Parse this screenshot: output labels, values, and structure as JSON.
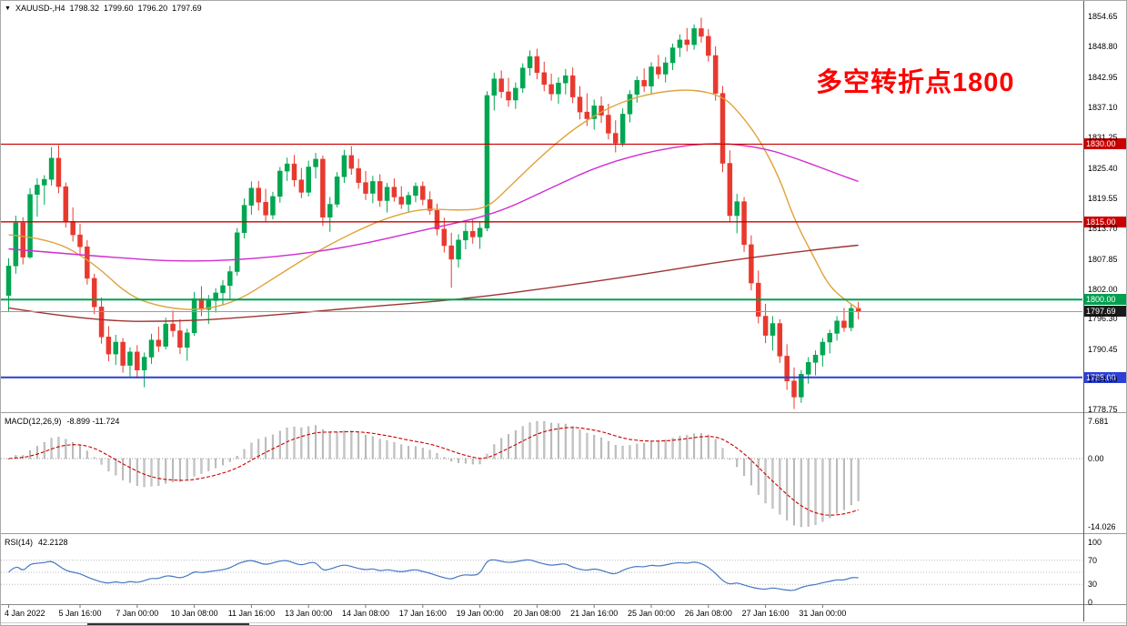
{
  "readout": {
    "symbol": "XAUUSD-,H4",
    "open": "1798.32",
    "high": "1799.60",
    "low": "1796.20",
    "close": "1797.69"
  },
  "annotation": {
    "text": "多空转折点1800",
    "color": "#ff0000"
  },
  "price_axis": {
    "ticks": [
      "1854.65",
      "1848.80",
      "1842.95",
      "1837.10",
      "1831.25",
      "1825.40",
      "1819.55",
      "1813.70",
      "1807.85",
      "1802.00",
      "1796.30",
      "1790.45",
      "1784.60",
      "1778.75"
    ]
  },
  "macd_panel": {
    "title": "MACD(12,26,9)",
    "values": "-8.899 -11.724",
    "axis_labels": [
      "7.681",
      "0.00",
      "-14.026"
    ],
    "axis_values": [
      7.681,
      0,
      -14.026
    ]
  },
  "rsi_panel": {
    "title": "RSI(14)",
    "value": "42.2128",
    "axis_labels": [
      "100",
      "70",
      "30",
      "0"
    ],
    "axis_values": [
      100,
      70,
      30,
      0
    ],
    "levels": [
      70,
      50,
      30
    ]
  },
  "time_axis": {
    "labels": [
      {
        "index": 0,
        "text": "4 Jan 2022"
      },
      {
        "index": 10,
        "text": "5 Jan 16:00"
      },
      {
        "index": 18,
        "text": "7 Jan 00:00"
      },
      {
        "index": 26,
        "text": "10 Jan 08:00"
      },
      {
        "index": 34,
        "text": "11 Jan 16:00"
      },
      {
        "index": 42,
        "text": "13 Jan 00:00"
      },
      {
        "index": 50,
        "text": "14 Jan 08:00"
      },
      {
        "index": 58,
        "text": "17 Jan 16:00"
      },
      {
        "index": 66,
        "text": "19 Jan 00:00"
      },
      {
        "index": 74,
        "text": "20 Jan 08:00"
      },
      {
        "index": 82,
        "text": "21 Jan 16:00"
      },
      {
        "index": 90,
        "text": "25 Jan 00:00"
      },
      {
        "index": 98,
        "text": "26 Jan 08:00"
      },
      {
        "index": 106,
        "text": "27 Jan 16:00"
      },
      {
        "index": 114,
        "text": "31 Jan 00:00"
      }
    ]
  },
  "chart_data": {
    "type": "candlestick",
    "symbol": "XAUUSD",
    "timeframe": "H4",
    "title": "XAUUSD-,H4",
    "y_axis": {
      "min": 1778.75,
      "max": 1854.65
    },
    "colors": {
      "up": "#00a651",
      "down": "#e8392e",
      "rsi": "#4577c2"
    },
    "current_price": {
      "value": 1797.69,
      "label": "1797.69",
      "line_color": "#9b9b9b",
      "tag_bg": "#1a1a1a"
    },
    "hlines": [
      {
        "price": 1830.0,
        "label": "1830.00",
        "color": "#c80000",
        "width": 1.2
      },
      {
        "price": 1815.0,
        "label": "1815.00",
        "color": "#c80000",
        "width": 1.4
      },
      {
        "price": 1800.0,
        "label": "1800.00",
        "color": "#00a050",
        "width": 2
      },
      {
        "price": 1785.0,
        "label": "1785.00",
        "color": "#2c3fd6",
        "width": 2
      }
    ],
    "candles": [
      [
        1800.8,
        1808.0,
        1797.6,
        1806.5
      ],
      [
        1806.5,
        1816.2,
        1805.0,
        1814.8
      ],
      [
        1814.8,
        1815.9,
        1806.8,
        1808.2
      ],
      [
        1808.2,
        1821.5,
        1807.9,
        1820.3
      ],
      [
        1820.3,
        1823.4,
        1816.0,
        1822.1
      ],
      [
        1822.1,
        1824.0,
        1818.3,
        1823.2
      ],
      [
        1823.2,
        1829.4,
        1822.0,
        1827.3
      ],
      [
        1827.3,
        1829.8,
        1820.5,
        1821.8
      ],
      [
        1821.8,
        1822.6,
        1813.9,
        1815.1
      ],
      [
        1815.1,
        1817.8,
        1811.2,
        1812.5
      ],
      [
        1812.5,
        1814.6,
        1808.8,
        1810.2
      ],
      [
        1810.2,
        1811.5,
        1802.9,
        1804.1
      ],
      [
        1804.1,
        1805.0,
        1797.2,
        1798.6
      ],
      [
        1798.6,
        1800.4,
        1791.5,
        1792.8
      ],
      [
        1792.8,
        1794.9,
        1788.1,
        1789.5
      ],
      [
        1789.5,
        1793.2,
        1787.4,
        1791.8
      ],
      [
        1791.8,
        1792.6,
        1785.9,
        1787.3
      ],
      [
        1787.3,
        1790.8,
        1785.2,
        1789.9
      ],
      [
        1789.9,
        1791.2,
        1784.8,
        1786.4
      ],
      [
        1786.4,
        1789.8,
        1783.1,
        1788.9
      ],
      [
        1788.9,
        1793.4,
        1787.6,
        1792.2
      ],
      [
        1792.2,
        1794.8,
        1789.9,
        1791.0
      ],
      [
        1791.0,
        1796.5,
        1790.4,
        1795.3
      ],
      [
        1795.3,
        1797.9,
        1792.8,
        1794.0
      ],
      [
        1794.0,
        1796.2,
        1789.5,
        1790.8
      ],
      [
        1790.8,
        1794.4,
        1788.2,
        1793.6
      ],
      [
        1793.6,
        1801.5,
        1793.0,
        1800.2
      ],
      [
        1800.2,
        1802.6,
        1796.8,
        1798.1
      ],
      [
        1798.1,
        1800.9,
        1795.3,
        1799.8
      ],
      [
        1799.8,
        1802.2,
        1797.5,
        1801.3
      ],
      [
        1801.3,
        1803.8,
        1798.9,
        1802.7
      ],
      [
        1802.7,
        1806.5,
        1800.1,
        1805.4
      ],
      [
        1805.4,
        1813.8,
        1804.6,
        1812.9
      ],
      [
        1812.9,
        1819.5,
        1811.8,
        1818.2
      ],
      [
        1818.2,
        1822.8,
        1816.4,
        1821.5
      ],
      [
        1821.5,
        1822.9,
        1817.2,
        1818.8
      ],
      [
        1818.8,
        1821.4,
        1814.9,
        1816.3
      ],
      [
        1816.3,
        1820.8,
        1815.5,
        1819.9
      ],
      [
        1819.9,
        1825.6,
        1818.7,
        1824.8
      ],
      [
        1824.8,
        1827.4,
        1822.9,
        1826.2
      ],
      [
        1826.2,
        1827.9,
        1821.8,
        1823.1
      ],
      [
        1823.1,
        1825.4,
        1819.6,
        1820.7
      ],
      [
        1820.7,
        1826.8,
        1819.9,
        1825.6
      ],
      [
        1825.6,
        1828.3,
        1823.4,
        1827.1
      ],
      [
        1827.1,
        1827.8,
        1814.2,
        1815.9
      ],
      [
        1815.9,
        1819.8,
        1813.1,
        1818.4
      ],
      [
        1818.4,
        1824.6,
        1817.8,
        1823.7
      ],
      [
        1823.7,
        1828.9,
        1822.5,
        1827.8
      ],
      [
        1827.8,
        1829.6,
        1824.1,
        1825.3
      ],
      [
        1825.3,
        1827.2,
        1821.4,
        1822.6
      ],
      [
        1822.6,
        1824.8,
        1819.2,
        1820.5
      ],
      [
        1820.5,
        1823.9,
        1818.6,
        1822.8
      ],
      [
        1822.8,
        1824.2,
        1817.9,
        1819.1
      ],
      [
        1819.1,
        1822.5,
        1816.8,
        1821.7
      ],
      [
        1821.7,
        1823.4,
        1818.9,
        1819.8
      ],
      [
        1819.8,
        1821.9,
        1817.5,
        1818.4
      ],
      [
        1818.4,
        1820.8,
        1816.9,
        1820.1
      ],
      [
        1820.1,
        1822.6,
        1818.8,
        1821.9
      ],
      [
        1821.9,
        1822.8,
        1818.2,
        1819.3
      ],
      [
        1819.3,
        1820.9,
        1816.4,
        1817.2
      ],
      [
        1817.2,
        1818.5,
        1812.4,
        1813.6
      ],
      [
        1813.6,
        1815.8,
        1809.1,
        1810.4
      ],
      [
        1810.4,
        1812.9,
        1802.3,
        1807.8
      ],
      [
        1807.8,
        1812.6,
        1806.2,
        1811.5
      ],
      [
        1811.5,
        1814.8,
        1809.7,
        1813.2
      ],
      [
        1813.2,
        1815.4,
        1810.8,
        1812.1
      ],
      [
        1812.1,
        1814.9,
        1809.8,
        1813.8
      ],
      [
        1813.8,
        1840.2,
        1813.2,
        1839.4
      ],
      [
        1839.4,
        1843.8,
        1836.5,
        1842.6
      ],
      [
        1842.6,
        1844.2,
        1838.9,
        1840.1
      ],
      [
        1840.1,
        1842.8,
        1837.2,
        1838.5
      ],
      [
        1838.5,
        1841.9,
        1836.8,
        1840.8
      ],
      [
        1840.8,
        1845.6,
        1839.9,
        1844.7
      ],
      [
        1844.7,
        1848.1,
        1843.2,
        1846.9
      ],
      [
        1846.9,
        1848.4,
        1842.5,
        1843.8
      ],
      [
        1843.8,
        1845.9,
        1840.2,
        1841.5
      ],
      [
        1841.5,
        1843.6,
        1838.4,
        1839.7
      ],
      [
        1839.7,
        1842.9,
        1837.8,
        1841.8
      ],
      [
        1841.8,
        1844.5,
        1839.6,
        1843.2
      ],
      [
        1843.2,
        1844.8,
        1837.9,
        1839.1
      ],
      [
        1839.1,
        1841.2,
        1834.8,
        1836.2
      ],
      [
        1836.2,
        1839.8,
        1833.5,
        1834.9
      ],
      [
        1834.9,
        1838.6,
        1832.8,
        1837.4
      ],
      [
        1837.4,
        1839.2,
        1834.1,
        1835.6
      ],
      [
        1835.6,
        1837.8,
        1830.9,
        1832.1
      ],
      [
        1832.1,
        1834.6,
        1828.4,
        1830.2
      ],
      [
        1830.2,
        1836.9,
        1829.5,
        1835.8
      ],
      [
        1835.8,
        1840.4,
        1834.2,
        1839.6
      ],
      [
        1839.6,
        1843.1,
        1838.0,
        1842.3
      ],
      [
        1842.3,
        1844.6,
        1840.1,
        1841.2
      ],
      [
        1841.2,
        1845.8,
        1839.8,
        1844.9
      ],
      [
        1844.9,
        1847.2,
        1842.6,
        1843.5
      ],
      [
        1843.5,
        1846.8,
        1841.9,
        1845.7
      ],
      [
        1845.7,
        1849.4,
        1844.3,
        1848.6
      ],
      [
        1848.6,
        1851.2,
        1846.8,
        1850.1
      ],
      [
        1850.1,
        1852.4,
        1847.9,
        1849.2
      ],
      [
        1849.2,
        1853.1,
        1848.2,
        1852.3
      ],
      [
        1852.3,
        1854.4,
        1849.6,
        1850.8
      ],
      [
        1850.8,
        1852.2,
        1845.9,
        1847.1
      ],
      [
        1847.1,
        1848.9,
        1838.4,
        1839.8
      ],
      [
        1839.8,
        1841.2,
        1824.6,
        1826.3
      ],
      [
        1826.3,
        1828.8,
        1814.9,
        1816.2
      ],
      [
        1816.2,
        1820.4,
        1812.8,
        1818.9
      ],
      [
        1818.9,
        1819.8,
        1809.2,
        1810.6
      ],
      [
        1810.6,
        1812.4,
        1801.8,
        1803.2
      ],
      [
        1803.2,
        1805.6,
        1795.4,
        1796.8
      ],
      [
        1796.8,
        1799.2,
        1791.6,
        1793.1
      ],
      [
        1793.1,
        1796.8,
        1790.2,
        1795.4
      ],
      [
        1795.4,
        1796.2,
        1787.8,
        1789.1
      ],
      [
        1789.1,
        1791.4,
        1782.6,
        1784.3
      ],
      [
        1784.3,
        1786.9,
        1778.9,
        1781.2
      ],
      [
        1781.2,
        1786.4,
        1780.1,
        1785.6
      ],
      [
        1785.6,
        1788.9,
        1783.8,
        1787.9
      ],
      [
        1787.9,
        1790.2,
        1785.4,
        1789.3
      ],
      [
        1789.3,
        1792.6,
        1787.1,
        1791.8
      ],
      [
        1791.8,
        1794.2,
        1789.6,
        1793.5
      ],
      [
        1793.5,
        1796.8,
        1792.1,
        1795.9
      ],
      [
        1795.9,
        1798.4,
        1793.8,
        1794.6
      ],
      [
        1794.6,
        1799.2,
        1793.9,
        1798.32
      ],
      [
        1798.32,
        1799.6,
        1796.2,
        1797.69
      ]
    ],
    "ma_lines": [
      {
        "name": "fast-orange",
        "color": "#e0a23c",
        "points": [
          [
            0,
            1812.5
          ],
          [
            6,
            1811.8
          ],
          [
            12,
            1807.0
          ],
          [
            17,
            1800.5
          ],
          [
            22,
            1798.4
          ],
          [
            27,
            1797.9
          ],
          [
            32,
            1799.7
          ],
          [
            37,
            1804.0
          ],
          [
            42,
            1808.4
          ],
          [
            48,
            1812.8
          ],
          [
            53,
            1815.8
          ],
          [
            58,
            1817.6
          ],
          [
            63,
            1817.2
          ],
          [
            67,
            1817.6
          ],
          [
            70,
            1821.6
          ],
          [
            76,
            1829.5
          ],
          [
            81,
            1834.8
          ],
          [
            86,
            1838.3
          ],
          [
            91,
            1840.1
          ],
          [
            96,
            1840.6
          ],
          [
            100,
            1839.2
          ],
          [
            102,
            1836.6
          ],
          [
            105,
            1831.3
          ],
          [
            108,
            1823.4
          ],
          [
            110,
            1815.5
          ],
          [
            113,
            1807.6
          ],
          [
            115,
            1802.3
          ],
          [
            118,
            1799.1
          ],
          [
            119,
            1798.2
          ]
        ]
      },
      {
        "name": "mid-magenta",
        "color": "#d02cd0",
        "points": [
          [
            0,
            1809.8
          ],
          [
            12,
            1808.4
          ],
          [
            25,
            1807.2
          ],
          [
            37,
            1808.1
          ],
          [
            48,
            1810.2
          ],
          [
            58,
            1813.4
          ],
          [
            68,
            1816.4
          ],
          [
            76,
            1821.6
          ],
          [
            83,
            1826.0
          ],
          [
            91,
            1829.0
          ],
          [
            99,
            1830.4
          ],
          [
            106,
            1829.2
          ],
          [
            111,
            1826.9
          ],
          [
            116,
            1824.3
          ],
          [
            119,
            1822.8
          ]
        ]
      },
      {
        "name": "slow-darkred",
        "color": "#9e3333",
        "points": [
          [
            0,
            1798.4
          ],
          [
            12,
            1795.8
          ],
          [
            25,
            1795.8
          ],
          [
            37,
            1797.0
          ],
          [
            50,
            1798.6
          ],
          [
            63,
            1800.0
          ],
          [
            76,
            1802.3
          ],
          [
            89,
            1804.9
          ],
          [
            101,
            1807.6
          ],
          [
            114,
            1809.8
          ],
          [
            119,
            1810.5
          ]
        ]
      }
    ],
    "indicators": {
      "macd": {
        "params": [
          12,
          26,
          9
        ],
        "main": -8.899,
        "signal": -11.724,
        "hist_axis_max": 7.681,
        "hist_axis_min": -14.026
      },
      "rsi": {
        "period": 14,
        "value": 42.2128
      }
    }
  }
}
